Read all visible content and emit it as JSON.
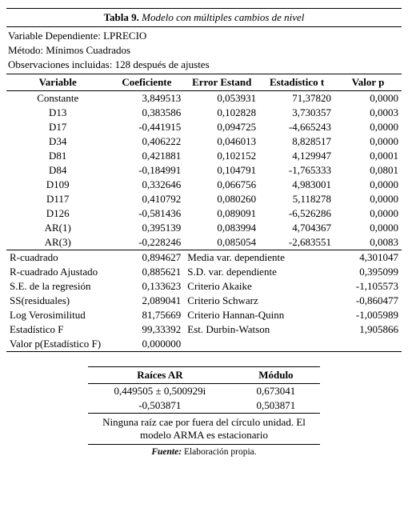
{
  "title_label": "Tabla 9.",
  "title_desc": "Modelo con múltiples cambios de nivel",
  "meta": {
    "dep": "Variable Dependiente: LPRECIO",
    "method": "Método: Mínimos Cuadrados",
    "obs": "Observaciones incluidas: 128 después de ajustes"
  },
  "headers": {
    "variable": "Variable",
    "coef": "Coeficiente",
    "se": "Error Estand",
    "t": "Estadístico t",
    "p": "Valor p"
  },
  "rows": [
    {
      "v": "Constante",
      "c": "3,849513",
      "s": "0,053931",
      "t": "71,37820",
      "p": "0,0000"
    },
    {
      "v": "D13",
      "c": "0,383586",
      "s": "0,102828",
      "t": "3,730357",
      "p": "0,0003"
    },
    {
      "v": "D17",
      "c": "-0,441915",
      "s": "0,094725",
      "t": "-4,665243",
      "p": "0,0000"
    },
    {
      "v": "D34",
      "c": "0,406222",
      "s": "0,046013",
      "t": "8,828517",
      "p": "0,0000"
    },
    {
      "v": "D81",
      "c": "0,421881",
      "s": "0,102152",
      "t": "4,129947",
      "p": "0,0001"
    },
    {
      "v": "D84",
      "c": "-0,184991",
      "s": "0,104791",
      "t": "-1,765333",
      "p": "0,0801"
    },
    {
      "v": "D109",
      "c": "0,332646",
      "s": "0,066756",
      "t": "4,983001",
      "p": "0,0000"
    },
    {
      "v": "D117",
      "c": "0,410792",
      "s": "0,080260",
      "t": "5,118278",
      "p": "0,0000"
    },
    {
      "v": "D126",
      "c": "-0,581436",
      "s": "0,089091",
      "t": "-6,526286",
      "p": "0,0000"
    },
    {
      "v": "AR(1)",
      "c": "0,395139",
      "s": "0,083994",
      "t": "4,704367",
      "p": "0,0000"
    },
    {
      "v": "AR(3)",
      "c": "-0,228246",
      "s": "0,085054",
      "t": "-2,683551",
      "p": "0,0083"
    }
  ],
  "stats": [
    {
      "l": "R-cuadrado",
      "lv": "0,894627",
      "r": "Media var. dependiente",
      "rv": "4,301047"
    },
    {
      "l": "R-cuadrado Ajustado",
      "lv": "0,885621",
      "r": "S.D. var. dependiente",
      "rv": "0,395099"
    },
    {
      "l": "S.E. de la regresión",
      "lv": "0,133623",
      "r": "Criterio Akaike",
      "rv": "-1,105573"
    },
    {
      "l": "SS(residuales)",
      "lv": "2,089041",
      "r": "Criterio Schwarz",
      "rv": "-0,860477"
    },
    {
      "l": "Log Verosimilitud",
      "lv": "81,75669",
      "r": "Criterio Hannan-Quinn",
      "rv": "-1,005989"
    },
    {
      "l": "Estadístico F",
      "lv": "99,33392",
      "r": "Est. Durbin-Watson",
      "rv": "1,905866"
    },
    {
      "l": "Valor p(Estadístico F)",
      "lv": "0,000000",
      "r": "",
      "rv": ""
    }
  ],
  "ar_headers": {
    "roots": "Raíces AR",
    "mod": "Módulo"
  },
  "ar_rows": [
    {
      "r": "0,449505 ±  0,500929i",
      "m": "0,673041"
    },
    {
      "r": "-0,503871",
      "m": "0,503871"
    }
  ],
  "ar_note": "Ninguna raíz cae por fuera del círculo unidad. El modelo ARMA es estacionario",
  "fuente_label": "Fuente:",
  "fuente_text": " Elaboración propia."
}
